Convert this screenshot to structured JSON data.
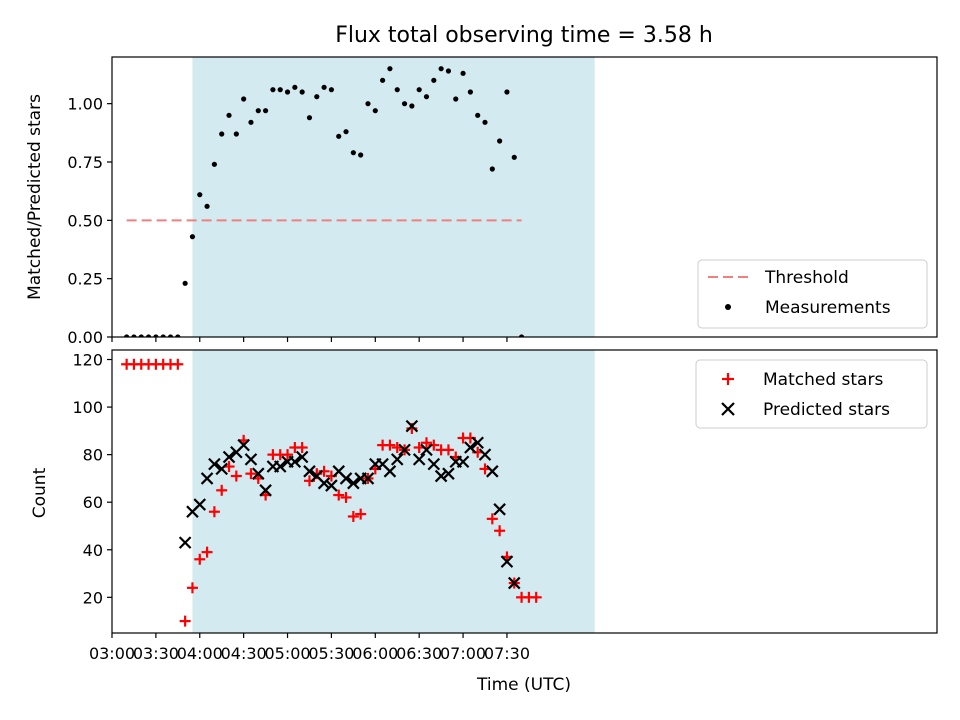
{
  "title": "Flux total observing time = 3.58 h",
  "colors": {
    "observing_band": "#d3eaf0",
    "threshold": "#f08080",
    "measurements": "#000000",
    "matched": "#ff0000",
    "predicted": "#000000"
  },
  "chart_data": [
    {
      "type": "scatter",
      "panel": "top",
      "ylabel": "Matched/Predicted stars",
      "xlim_min": [
        180,
        744
      ],
      "ylim": [
        0,
        1.2
      ],
      "yticks": [
        0.0,
        0.25,
        0.5,
        0.75,
        1.0
      ],
      "ytick_labels": [
        "0.00",
        "0.25",
        "0.50",
        "0.75",
        "1.00"
      ],
      "observing_band_min": [
        235,
        510
      ],
      "legend": "lower right",
      "threshold": {
        "name": "Threshold",
        "value": 0.5,
        "x_range_min": [
          190,
          460
        ],
        "style": "dashed"
      },
      "series": [
        {
          "name": "Measurements",
          "marker": "dot",
          "x_min": [
            190,
            195,
            200,
            205,
            210,
            215,
            220,
            225,
            230,
            235,
            240,
            245,
            250,
            255,
            260,
            265,
            270,
            275,
            280,
            285,
            290,
            295,
            300,
            305,
            310,
            315,
            320,
            325,
            330,
            335,
            340,
            345,
            350,
            355,
            360,
            365,
            370,
            375,
            380,
            385,
            390,
            395,
            400,
            405,
            410,
            415,
            420,
            425,
            430,
            435,
            440,
            445,
            450,
            455,
            460
          ],
          "y": [
            0,
            0,
            0,
            0,
            0,
            0,
            0,
            0,
            0.23,
            0.43,
            0.61,
            0.56,
            0.74,
            0.87,
            0.95,
            0.87,
            1.02,
            0.92,
            0.97,
            0.97,
            1.06,
            1.06,
            1.05,
            1.07,
            1.05,
            0.94,
            1.03,
            1.07,
            1.06,
            0.86,
            0.88,
            0.79,
            0.78,
            1.0,
            0.97,
            1.1,
            1.15,
            1.06,
            1.0,
            0.99,
            1.06,
            1.03,
            1.1,
            1.15,
            1.14,
            1.02,
            1.13,
            1.05,
            0.95,
            0.92,
            0.72,
            0.84,
            1.05,
            0.77,
            0
          ]
        }
      ]
    },
    {
      "type": "scatter",
      "panel": "bottom",
      "xlabel": "Time (UTC)",
      "ylabel": "Count",
      "xlim_min": [
        180,
        744
      ],
      "ylim": [
        5,
        124
      ],
      "yticks": [
        20,
        40,
        60,
        80,
        100,
        120
      ],
      "xtick_labels": [
        "03:00",
        "03:30",
        "04:00",
        "04:30",
        "05:00",
        "05:30",
        "06:00",
        "06:30",
        "07:00",
        "07:30"
      ],
      "observing_band_min": [
        235,
        510
      ],
      "legend": "upper right",
      "series": [
        {
          "name": "Matched stars",
          "marker": "plus",
          "x_min": [
            190,
            195,
            200,
            205,
            210,
            215,
            220,
            225,
            230,
            235,
            240,
            245,
            250,
            255,
            260,
            265,
            270,
            275,
            280,
            285,
            290,
            295,
            300,
            305,
            310,
            315,
            320,
            325,
            330,
            335,
            340,
            345,
            350,
            355,
            360,
            365,
            370,
            375,
            380,
            385,
            390,
            395,
            400,
            405,
            410,
            415,
            420,
            425,
            430,
            435,
            440,
            445,
            450,
            455,
            460,
            465,
            470
          ],
          "values": [
            118,
            118,
            118,
            118,
            118,
            118,
            118,
            118,
            10,
            24,
            36,
            39,
            56,
            65,
            75,
            71,
            86,
            72,
            70,
            63,
            80,
            80,
            80,
            83,
            83,
            69,
            72,
            73,
            71,
            63,
            62,
            54,
            55,
            70,
            74,
            84,
            84,
            83,
            82,
            91,
            83,
            85,
            84,
            82,
            82,
            79,
            87,
            87,
            81,
            74,
            53,
            48,
            37,
            26,
            20,
            20,
            20
          ]
        },
        {
          "name": "Predicted stars",
          "marker": "x",
          "x_min": [
            230,
            235,
            240,
            245,
            250,
            255,
            260,
            265,
            270,
            275,
            280,
            285,
            290,
            295,
            300,
            305,
            310,
            315,
            320,
            325,
            330,
            335,
            340,
            345,
            350,
            355,
            360,
            365,
            370,
            375,
            380,
            385,
            390,
            395,
            400,
            405,
            410,
            415,
            420,
            425,
            430,
            435,
            440,
            445,
            450,
            455
          ],
          "values": [
            43,
            56,
            59,
            70,
            76,
            74,
            79,
            81,
            84,
            78,
            72,
            65,
            75,
            75,
            77,
            77,
            79,
            73,
            71,
            68,
            67,
            73,
            70,
            68,
            70,
            70,
            76,
            76,
            73,
            78,
            82,
            92,
            78,
            82,
            76,
            71,
            72,
            77,
            77,
            83,
            85,
            80,
            73,
            57,
            35,
            26
          ]
        }
      ]
    }
  ]
}
